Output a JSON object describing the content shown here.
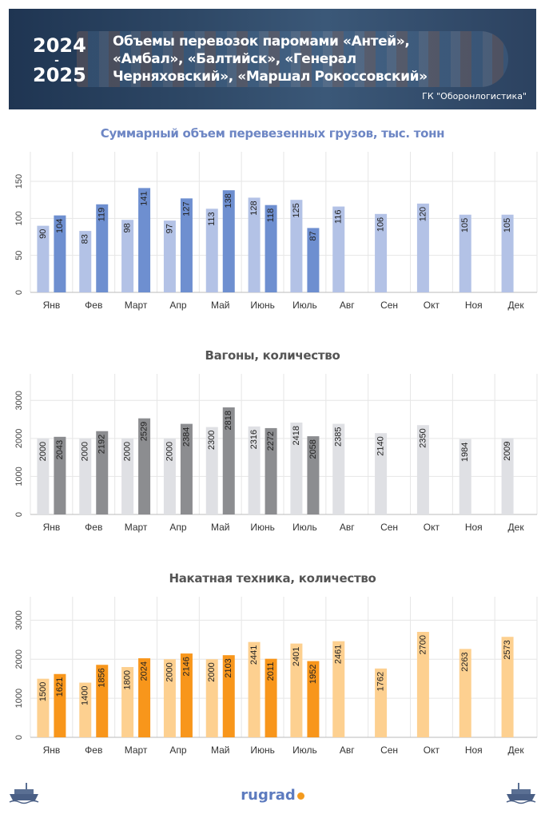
{
  "header": {
    "year_top": "2024",
    "year_dash": "-",
    "year_bottom": "2025",
    "title": "Объемы перевозок паромами «Антей», «Амбал», «Балтийск», «Генерал Черняховский», «Маршал Рокоссовский»",
    "source": "ГК \"Оборонлогистика\""
  },
  "footer": {
    "logo": "rugrad"
  },
  "colors": {
    "cargo_2024": "#b3c2e6",
    "cargo_2025": "#6e8fd0",
    "wagons_2024": "#dfe0e4",
    "wagons_2025": "#8c8d90",
    "vehicles_2024": "#fdd090",
    "vehicles_2025": "#f8961b",
    "cargo_title": "#6d86c4",
    "other_title": "#555555"
  },
  "chart_data": [
    {
      "type": "bar",
      "title": "Суммарный объем перевезенных грузов, тыс. тонн",
      "categories": [
        "Янв",
        "Фев",
        "Март",
        "Апр",
        "Май",
        "Июнь",
        "Июль",
        "Авг",
        "Сен",
        "Окт",
        "Ноя",
        "Дек"
      ],
      "ylim": [
        0,
        190
      ],
      "yticks": [
        0,
        50,
        100,
        150
      ],
      "series": [
        {
          "values": [
            90,
            83,
            98,
            97,
            113,
            128,
            125,
            116,
            106,
            120,
            105,
            105
          ]
        },
        {
          "values": [
            104,
            119,
            141,
            127,
            138,
            118,
            87,
            null,
            null,
            null,
            null,
            null
          ]
        }
      ],
      "grid": true
    },
    {
      "type": "bar",
      "title": "Вагоны, количество",
      "categories": [
        "Янв",
        "Фев",
        "Март",
        "Апр",
        "Май",
        "Июнь",
        "Июль",
        "Авг",
        "Сен",
        "Окт",
        "Ноя",
        "Дек"
      ],
      "ylim": [
        0,
        3700
      ],
      "yticks": [
        0,
        1000,
        2000,
        3000
      ],
      "series": [
        {
          "values": [
            2000,
            2000,
            2000,
            2000,
            2300,
            2316,
            2418,
            2385,
            2140,
            2350,
            1984,
            2009
          ]
        },
        {
          "values": [
            2043,
            2192,
            2529,
            2384,
            2818,
            2272,
            2058,
            null,
            null,
            null,
            null,
            null
          ]
        }
      ],
      "grid": true
    },
    {
      "type": "bar",
      "title": "Накатная техника, количество",
      "categories": [
        "Янв",
        "Фев",
        "Март",
        "Апр",
        "Май",
        "Июнь",
        "Июль",
        "Авг",
        "Сен",
        "Окт",
        "Ноя",
        "Дек"
      ],
      "ylim": [
        0,
        3600
      ],
      "yticks": [
        0,
        1000,
        2000,
        3000
      ],
      "series": [
        {
          "values": [
            1500,
            1400,
            1800,
            2000,
            2000,
            2441,
            2401,
            2461,
            1762,
            2700,
            2263,
            2573
          ]
        },
        {
          "values": [
            1621,
            1856,
            2024,
            2146,
            2103,
            2011,
            1952,
            null,
            null,
            null,
            null,
            null
          ]
        }
      ],
      "grid": true
    }
  ]
}
